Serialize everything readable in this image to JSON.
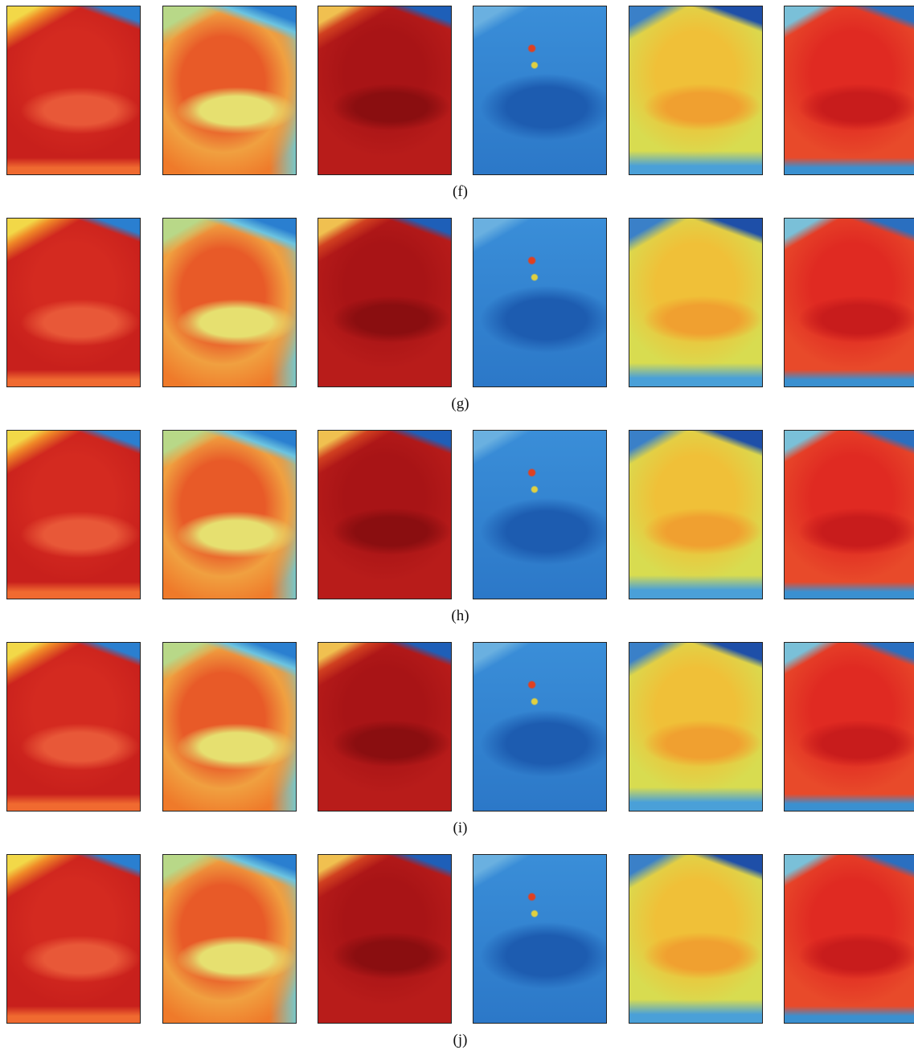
{
  "figure": {
    "rows": [
      {
        "caption": "(f)"
      },
      {
        "caption": "(g)"
      },
      {
        "caption": "(h)"
      },
      {
        "caption": "(i)"
      },
      {
        "caption": "(j)"
      }
    ]
  }
}
